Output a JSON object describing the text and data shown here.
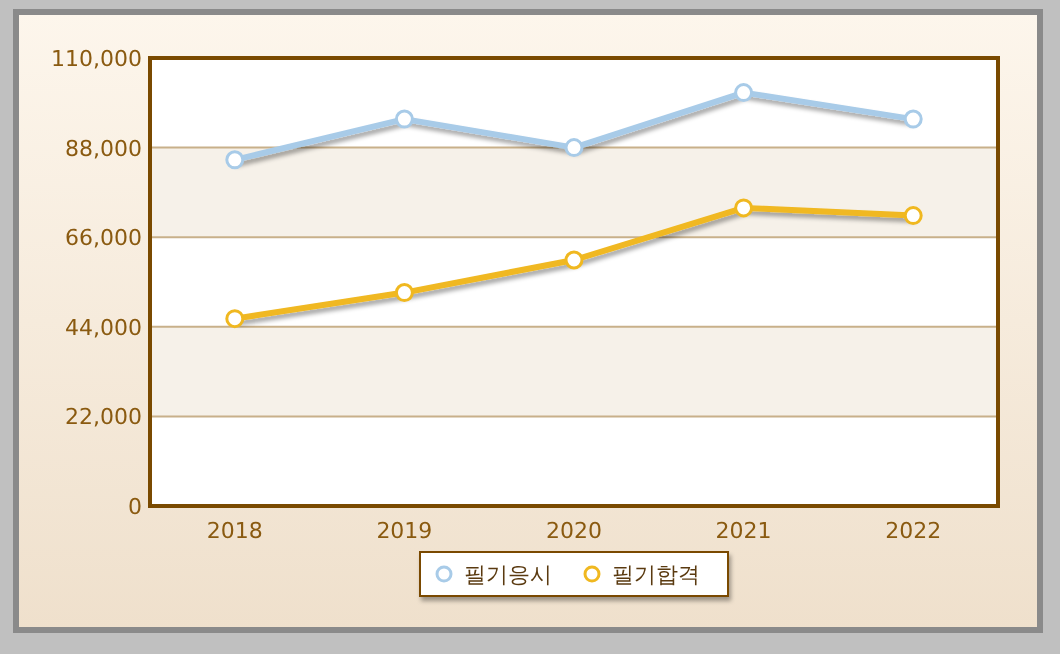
{
  "chart_data": {
    "type": "line",
    "categories": [
      "2018",
      "2019",
      "2020",
      "2021",
      "2022"
    ],
    "series": [
      {
        "name": "필기응시",
        "color": "#a8cbe8",
        "values": [
          85000,
          95000,
          88000,
          101500,
          95000
        ]
      },
      {
        "name": "필기합격",
        "color": "#f0b820",
        "values": [
          46000,
          52400,
          60400,
          73200,
          71300
        ]
      }
    ],
    "ylim": [
      0,
      110000
    ],
    "yticks": [
      {
        "value": 0,
        "label": "0"
      },
      {
        "value": 22000,
        "label": "22,000"
      },
      {
        "value": 44000,
        "label": "44,000"
      },
      {
        "value": 66000,
        "label": "66,000"
      },
      {
        "value": 88000,
        "label": "88,000"
      },
      {
        "value": 110000,
        "label": "110,000"
      }
    ],
    "grid": "y",
    "legend": "bottom",
    "marker": "circle",
    "line_style": "solid"
  }
}
